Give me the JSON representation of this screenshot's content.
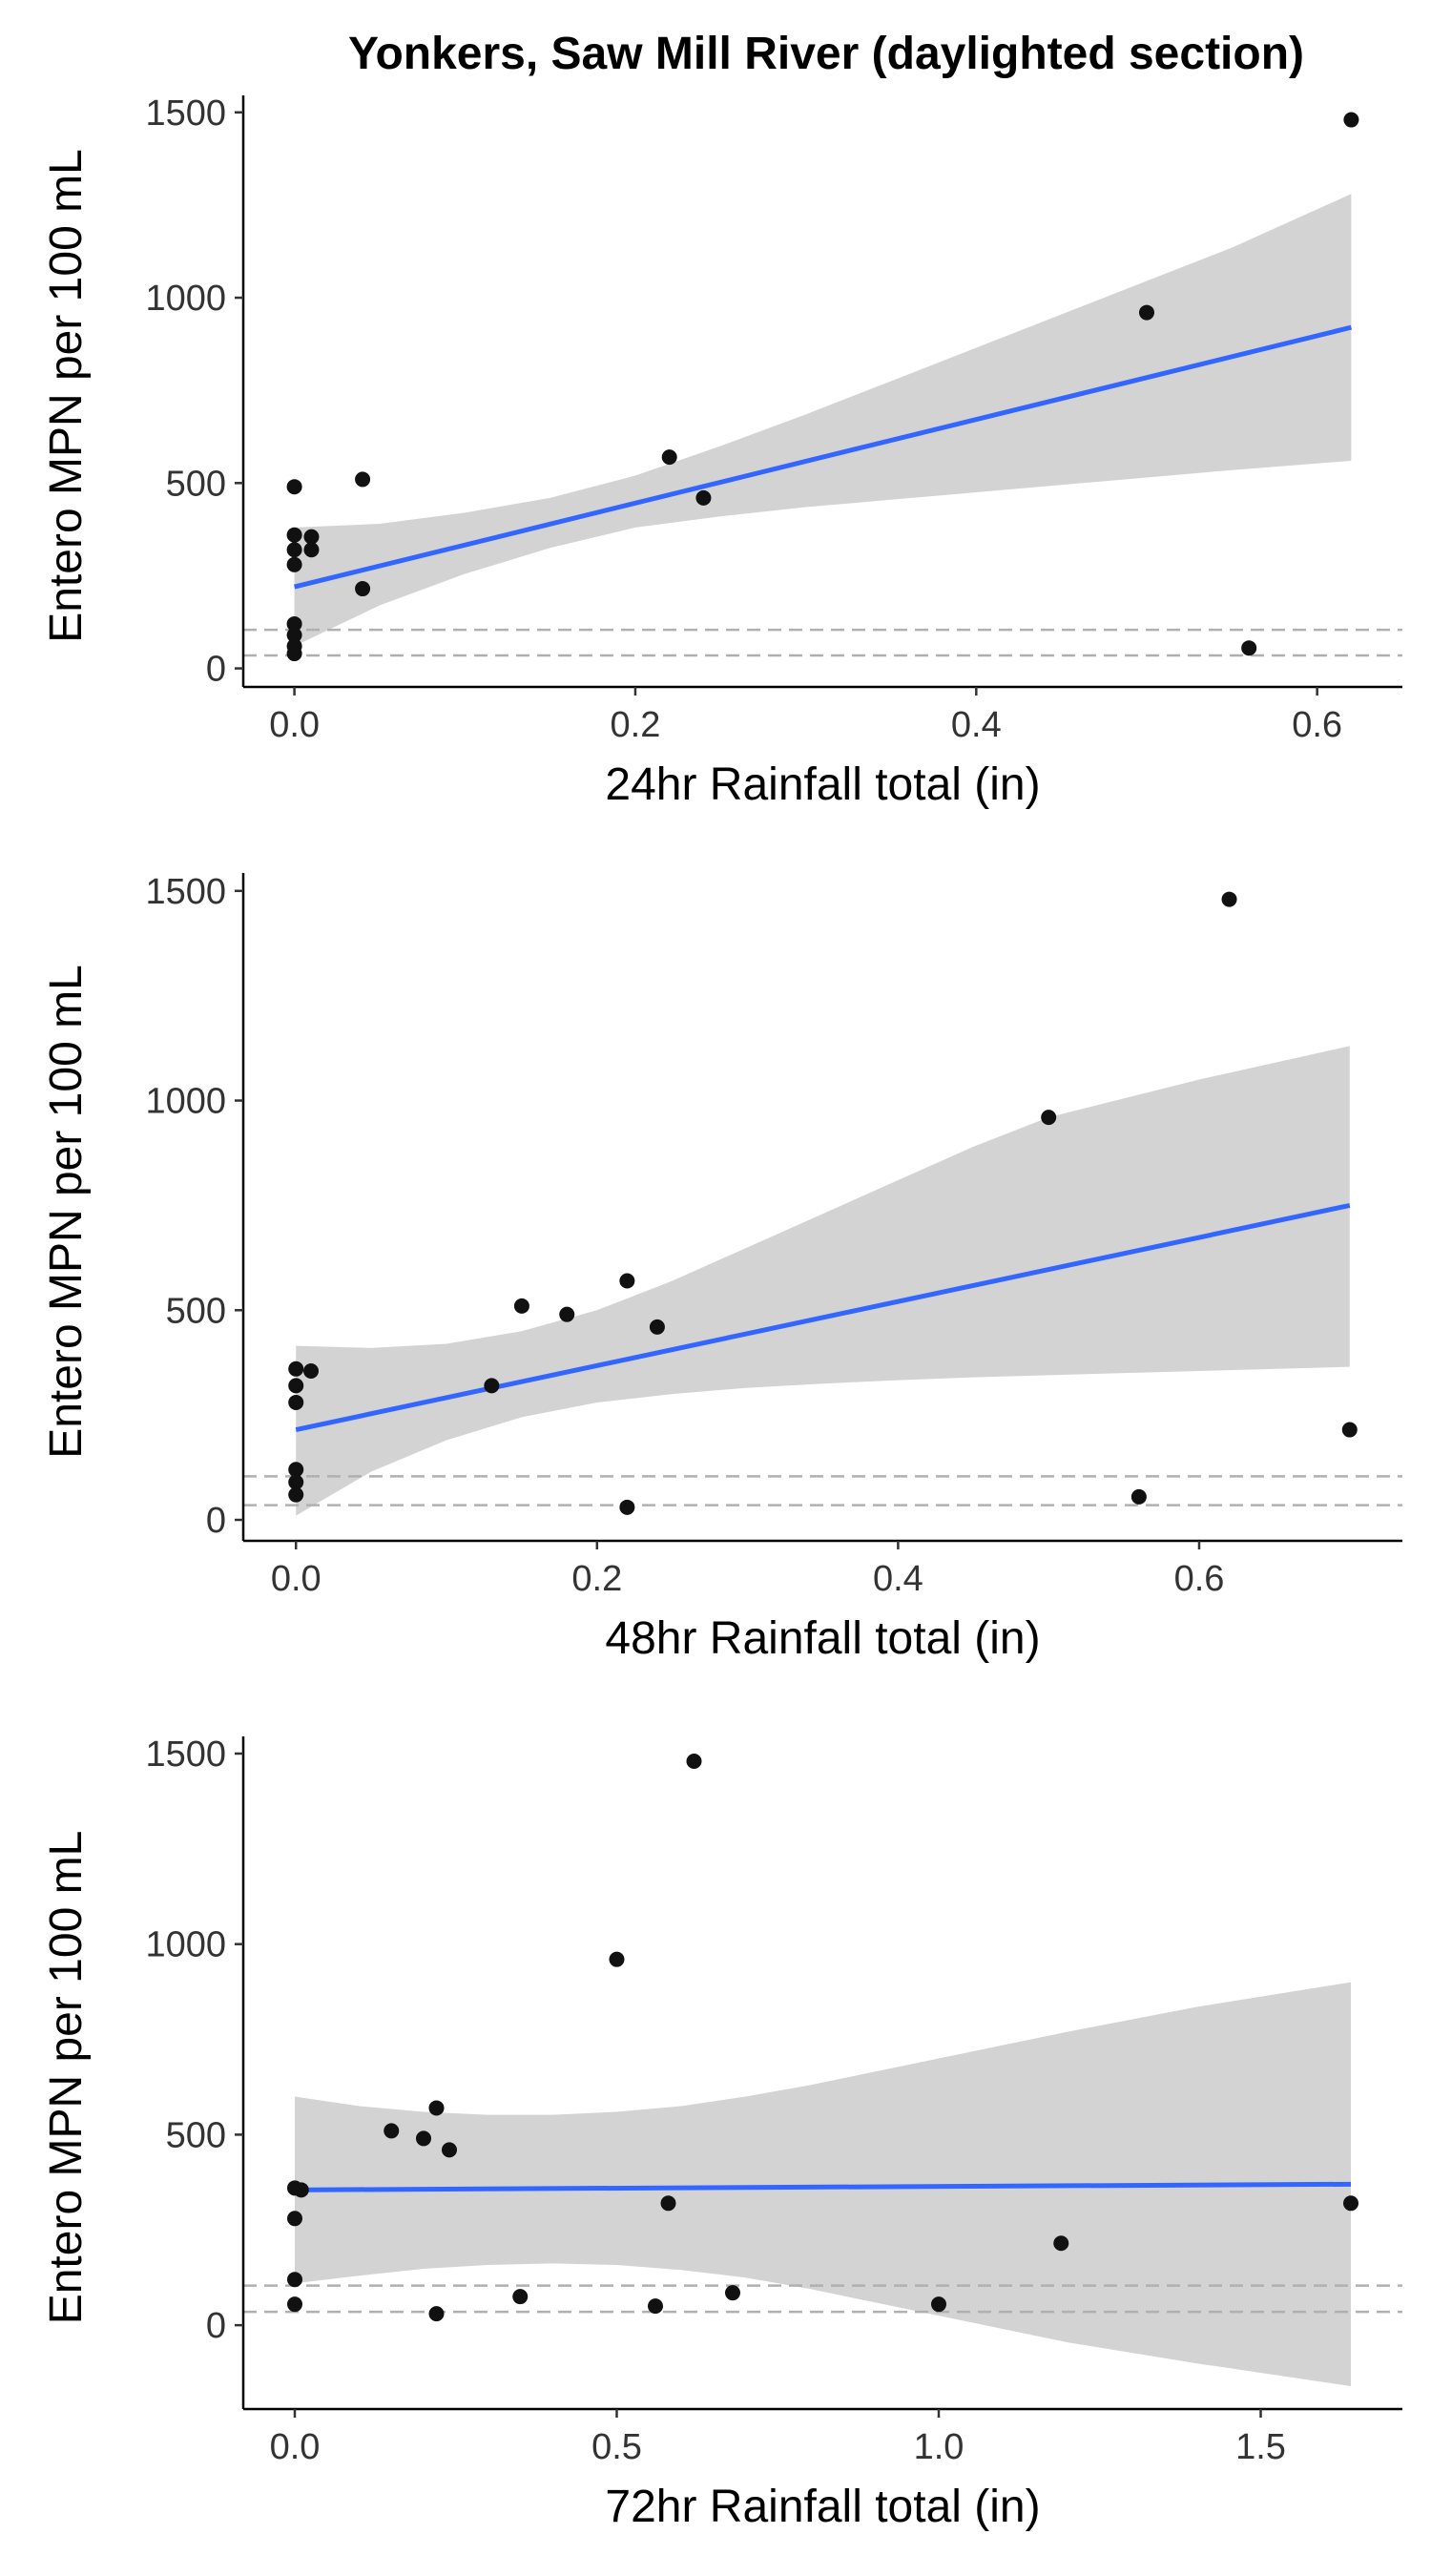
{
  "title": "Yonkers, Saw Mill River (daylighted section)",
  "colors": {
    "point": "#111111",
    "fit_line": "#3366FF",
    "ribbon": "#D3D3D3",
    "reference": "#B0B0B0",
    "axis": "#000000"
  },
  "chart_data": [
    {
      "type": "scatter",
      "xlabel": "24hr Rainfall total (in)",
      "ylabel": "Entero MPN per 100 mL",
      "xlim": [
        -0.03,
        0.65
      ],
      "ylim": [
        -50,
        1520
      ],
      "xticks": [
        0.0,
        0.2,
        0.4,
        0.6
      ],
      "xtick_labels": [
        "0.0",
        "0.2",
        "0.4",
        "0.6"
      ],
      "yticks": [
        0,
        500,
        1000,
        1500
      ],
      "ytick_labels": [
        "0",
        "500",
        "1000",
        "1500"
      ],
      "reference_lines": [
        35,
        104
      ],
      "grid": false,
      "points": [
        {
          "x": 0.0,
          "y": 490
        },
        {
          "x": 0.0,
          "y": 360
        },
        {
          "x": 0.0,
          "y": 320
        },
        {
          "x": 0.0,
          "y": 280
        },
        {
          "x": 0.0,
          "y": 120
        },
        {
          "x": 0.0,
          "y": 90
        },
        {
          "x": 0.0,
          "y": 60
        },
        {
          "x": 0.0,
          "y": 40
        },
        {
          "x": 0.01,
          "y": 355
        },
        {
          "x": 0.01,
          "y": 320
        },
        {
          "x": 0.04,
          "y": 510
        },
        {
          "x": 0.04,
          "y": 215
        },
        {
          "x": 0.22,
          "y": 570
        },
        {
          "x": 0.24,
          "y": 460
        },
        {
          "x": 0.5,
          "y": 960
        },
        {
          "x": 0.56,
          "y": 55
        },
        {
          "x": 0.62,
          "y": 1480
        }
      ],
      "fit": {
        "x0": 0.0,
        "y0": 220,
        "x1": 0.62,
        "y1": 920
      },
      "band": [
        {
          "x": 0.0,
          "lo": 60,
          "hi": 380
        },
        {
          "x": 0.05,
          "lo": 170,
          "hi": 390
        },
        {
          "x": 0.1,
          "lo": 255,
          "hi": 420
        },
        {
          "x": 0.15,
          "lo": 325,
          "hi": 460
        },
        {
          "x": 0.2,
          "lo": 380,
          "hi": 520
        },
        {
          "x": 0.25,
          "lo": 410,
          "hi": 600
        },
        {
          "x": 0.3,
          "lo": 435,
          "hi": 685
        },
        {
          "x": 0.35,
          "lo": 455,
          "hi": 775
        },
        {
          "x": 0.4,
          "lo": 475,
          "hi": 865
        },
        {
          "x": 0.45,
          "lo": 495,
          "hi": 955
        },
        {
          "x": 0.5,
          "lo": 515,
          "hi": 1045
        },
        {
          "x": 0.55,
          "lo": 535,
          "hi": 1135
        },
        {
          "x": 0.62,
          "lo": 560,
          "hi": 1280
        }
      ]
    },
    {
      "type": "scatter",
      "xlabel": "48hr Rainfall total (in)",
      "ylabel": "Entero MPN per 100 mL",
      "xlim": [
        -0.035,
        0.735
      ],
      "ylim": [
        -50,
        1520
      ],
      "xticks": [
        0.0,
        0.2,
        0.4,
        0.6
      ],
      "xtick_labels": [
        "0.0",
        "0.2",
        "0.4",
        "0.6"
      ],
      "yticks": [
        0,
        500,
        1000,
        1500
      ],
      "ytick_labels": [
        "0",
        "500",
        "1000",
        "1500"
      ],
      "reference_lines": [
        35,
        104
      ],
      "grid": false,
      "points": [
        {
          "x": 0.0,
          "y": 360
        },
        {
          "x": 0.0,
          "y": 320
        },
        {
          "x": 0.0,
          "y": 280
        },
        {
          "x": 0.0,
          "y": 120
        },
        {
          "x": 0.0,
          "y": 90
        },
        {
          "x": 0.0,
          "y": 60
        },
        {
          "x": 0.01,
          "y": 355
        },
        {
          "x": 0.13,
          "y": 320
        },
        {
          "x": 0.15,
          "y": 510
        },
        {
          "x": 0.18,
          "y": 490
        },
        {
          "x": 0.22,
          "y": 570
        },
        {
          "x": 0.22,
          "y": 30
        },
        {
          "x": 0.24,
          "y": 460
        },
        {
          "x": 0.5,
          "y": 960
        },
        {
          "x": 0.56,
          "y": 55
        },
        {
          "x": 0.62,
          "y": 1480
        },
        {
          "x": 0.7,
          "y": 215
        }
      ],
      "fit": {
        "x0": 0.0,
        "y0": 215,
        "x1": 0.7,
        "y1": 750
      },
      "band": [
        {
          "x": 0.0,
          "lo": 10,
          "hi": 415
        },
        {
          "x": 0.05,
          "lo": 115,
          "hi": 410
        },
        {
          "x": 0.1,
          "lo": 190,
          "hi": 420
        },
        {
          "x": 0.15,
          "lo": 245,
          "hi": 450
        },
        {
          "x": 0.2,
          "lo": 280,
          "hi": 500
        },
        {
          "x": 0.25,
          "lo": 300,
          "hi": 570
        },
        {
          "x": 0.3,
          "lo": 315,
          "hi": 650
        },
        {
          "x": 0.35,
          "lo": 325,
          "hi": 730
        },
        {
          "x": 0.4,
          "lo": 333,
          "hi": 810
        },
        {
          "x": 0.45,
          "lo": 340,
          "hi": 890
        },
        {
          "x": 0.5,
          "lo": 345,
          "hi": 960
        },
        {
          "x": 0.6,
          "lo": 355,
          "hi": 1050
        },
        {
          "x": 0.7,
          "lo": 365,
          "hi": 1130
        }
      ]
    },
    {
      "type": "scatter",
      "xlabel": "72hr Rainfall total (in)",
      "ylabel": "Entero MPN per 100 mL",
      "xlim": [
        -0.08,
        1.72
      ],
      "ylim": [
        -220,
        1520
      ],
      "xticks": [
        0.0,
        0.5,
        1.0,
        1.5
      ],
      "xtick_labels": [
        "0.0",
        "0.5",
        "1.0",
        "1.5"
      ],
      "yticks": [
        0,
        500,
        1000,
        1500
      ],
      "ytick_labels": [
        "0",
        "500",
        "1000",
        "1500"
      ],
      "reference_lines": [
        35,
        104
      ],
      "grid": false,
      "points": [
        {
          "x": 0.0,
          "y": 360
        },
        {
          "x": 0.0,
          "y": 280
        },
        {
          "x": 0.0,
          "y": 120
        },
        {
          "x": 0.0,
          "y": 55
        },
        {
          "x": 0.01,
          "y": 355
        },
        {
          "x": 0.15,
          "y": 510
        },
        {
          "x": 0.2,
          "y": 490
        },
        {
          "x": 0.22,
          "y": 570
        },
        {
          "x": 0.22,
          "y": 30
        },
        {
          "x": 0.24,
          "y": 460
        },
        {
          "x": 0.35,
          "y": 75
        },
        {
          "x": 0.5,
          "y": 960
        },
        {
          "x": 0.56,
          "y": 50
        },
        {
          "x": 0.58,
          "y": 320
        },
        {
          "x": 0.62,
          "y": 1480
        },
        {
          "x": 0.68,
          "y": 85
        },
        {
          "x": 1.0,
          "y": 55
        },
        {
          "x": 1.19,
          "y": 215
        },
        {
          "x": 1.64,
          "y": 320
        }
      ],
      "fit": {
        "x0": 0.0,
        "y0": 355,
        "x1": 1.64,
        "y1": 370
      },
      "band": [
        {
          "x": 0.0,
          "lo": 110,
          "hi": 600
        },
        {
          "x": 0.1,
          "lo": 130,
          "hi": 575
        },
        {
          "x": 0.2,
          "lo": 148,
          "hi": 560
        },
        {
          "x": 0.3,
          "lo": 158,
          "hi": 552
        },
        {
          "x": 0.4,
          "lo": 162,
          "hi": 552
        },
        {
          "x": 0.5,
          "lo": 158,
          "hi": 560
        },
        {
          "x": 0.6,
          "lo": 145,
          "hi": 575
        },
        {
          "x": 0.7,
          "lo": 125,
          "hi": 600
        },
        {
          "x": 0.8,
          "lo": 95,
          "hi": 630
        },
        {
          "x": 0.9,
          "lo": 60,
          "hi": 665
        },
        {
          "x": 1.0,
          "lo": 25,
          "hi": 700
        },
        {
          "x": 1.2,
          "lo": -45,
          "hi": 770
        },
        {
          "x": 1.4,
          "lo": -100,
          "hi": 835
        },
        {
          "x": 1.64,
          "lo": -160,
          "hi": 900
        }
      ]
    }
  ]
}
